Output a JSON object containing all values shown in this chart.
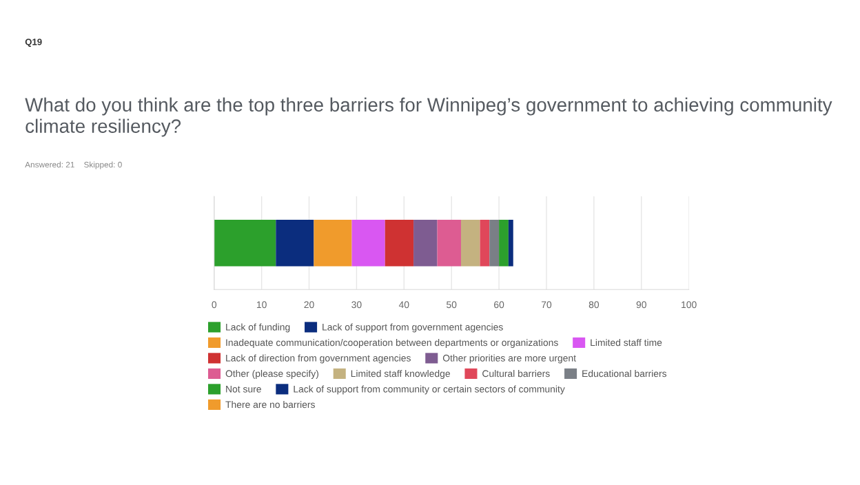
{
  "chart_data": {
    "type": "bar",
    "orientation": "horizontal",
    "stacked": true,
    "title": "What do you think are the top three barriers for Winnipeg’s government to achieving community climate resiliency?",
    "annotations": [
      "Q19",
      "Answered: 21    Skipped: 0"
    ],
    "categories": [
      null
    ],
    "series": [
      {
        "name": "Lack of funding",
        "color": "#2ca02c",
        "values": [
          13
        ]
      },
      {
        "name": "Lack of support from government agencies",
        "color": "#0b2d7e",
        "values": [
          8
        ]
      },
      {
        "name": "Inadequate communication/cooperation between departments or organizations",
        "color": "#f09b2c",
        "values": [
          8
        ]
      },
      {
        "name": "Limited staff time",
        "color": "#d957f2",
        "values": [
          7
        ]
      },
      {
        "name": "Lack of direction from government agencies",
        "color": "#cf3232",
        "values": [
          6
        ]
      },
      {
        "name": "Other priorities are more urgent",
        "color": "#7e5c91",
        "values": [
          5
        ]
      },
      {
        "name": "Other (please specify)",
        "color": "#dd5c92",
        "values": [
          5
        ]
      },
      {
        "name": "Limited staff knowledge",
        "color": "#c4b280",
        "values": [
          4
        ]
      },
      {
        "name": "Cultural barriers",
        "color": "#e0475a",
        "values": [
          2
        ]
      },
      {
        "name": "Educational barriers",
        "color": "#7a7f86",
        "values": [
          2
        ]
      },
      {
        "name": "Not sure",
        "color": "#2ca02c",
        "values": [
          2
        ]
      },
      {
        "name": "Lack of support from community or certain sectors of community",
        "color": "#0b2d7e",
        "values": [
          1
        ]
      },
      {
        "name": "There are no barriers",
        "color": "#f09b2c",
        "values": [
          0
        ]
      }
    ],
    "xlim": [
      0,
      100
    ],
    "xticks": [
      0,
      10,
      20,
      30,
      40,
      50,
      60,
      70,
      80,
      90,
      100
    ],
    "grid": "x",
    "legend": "bottom"
  }
}
